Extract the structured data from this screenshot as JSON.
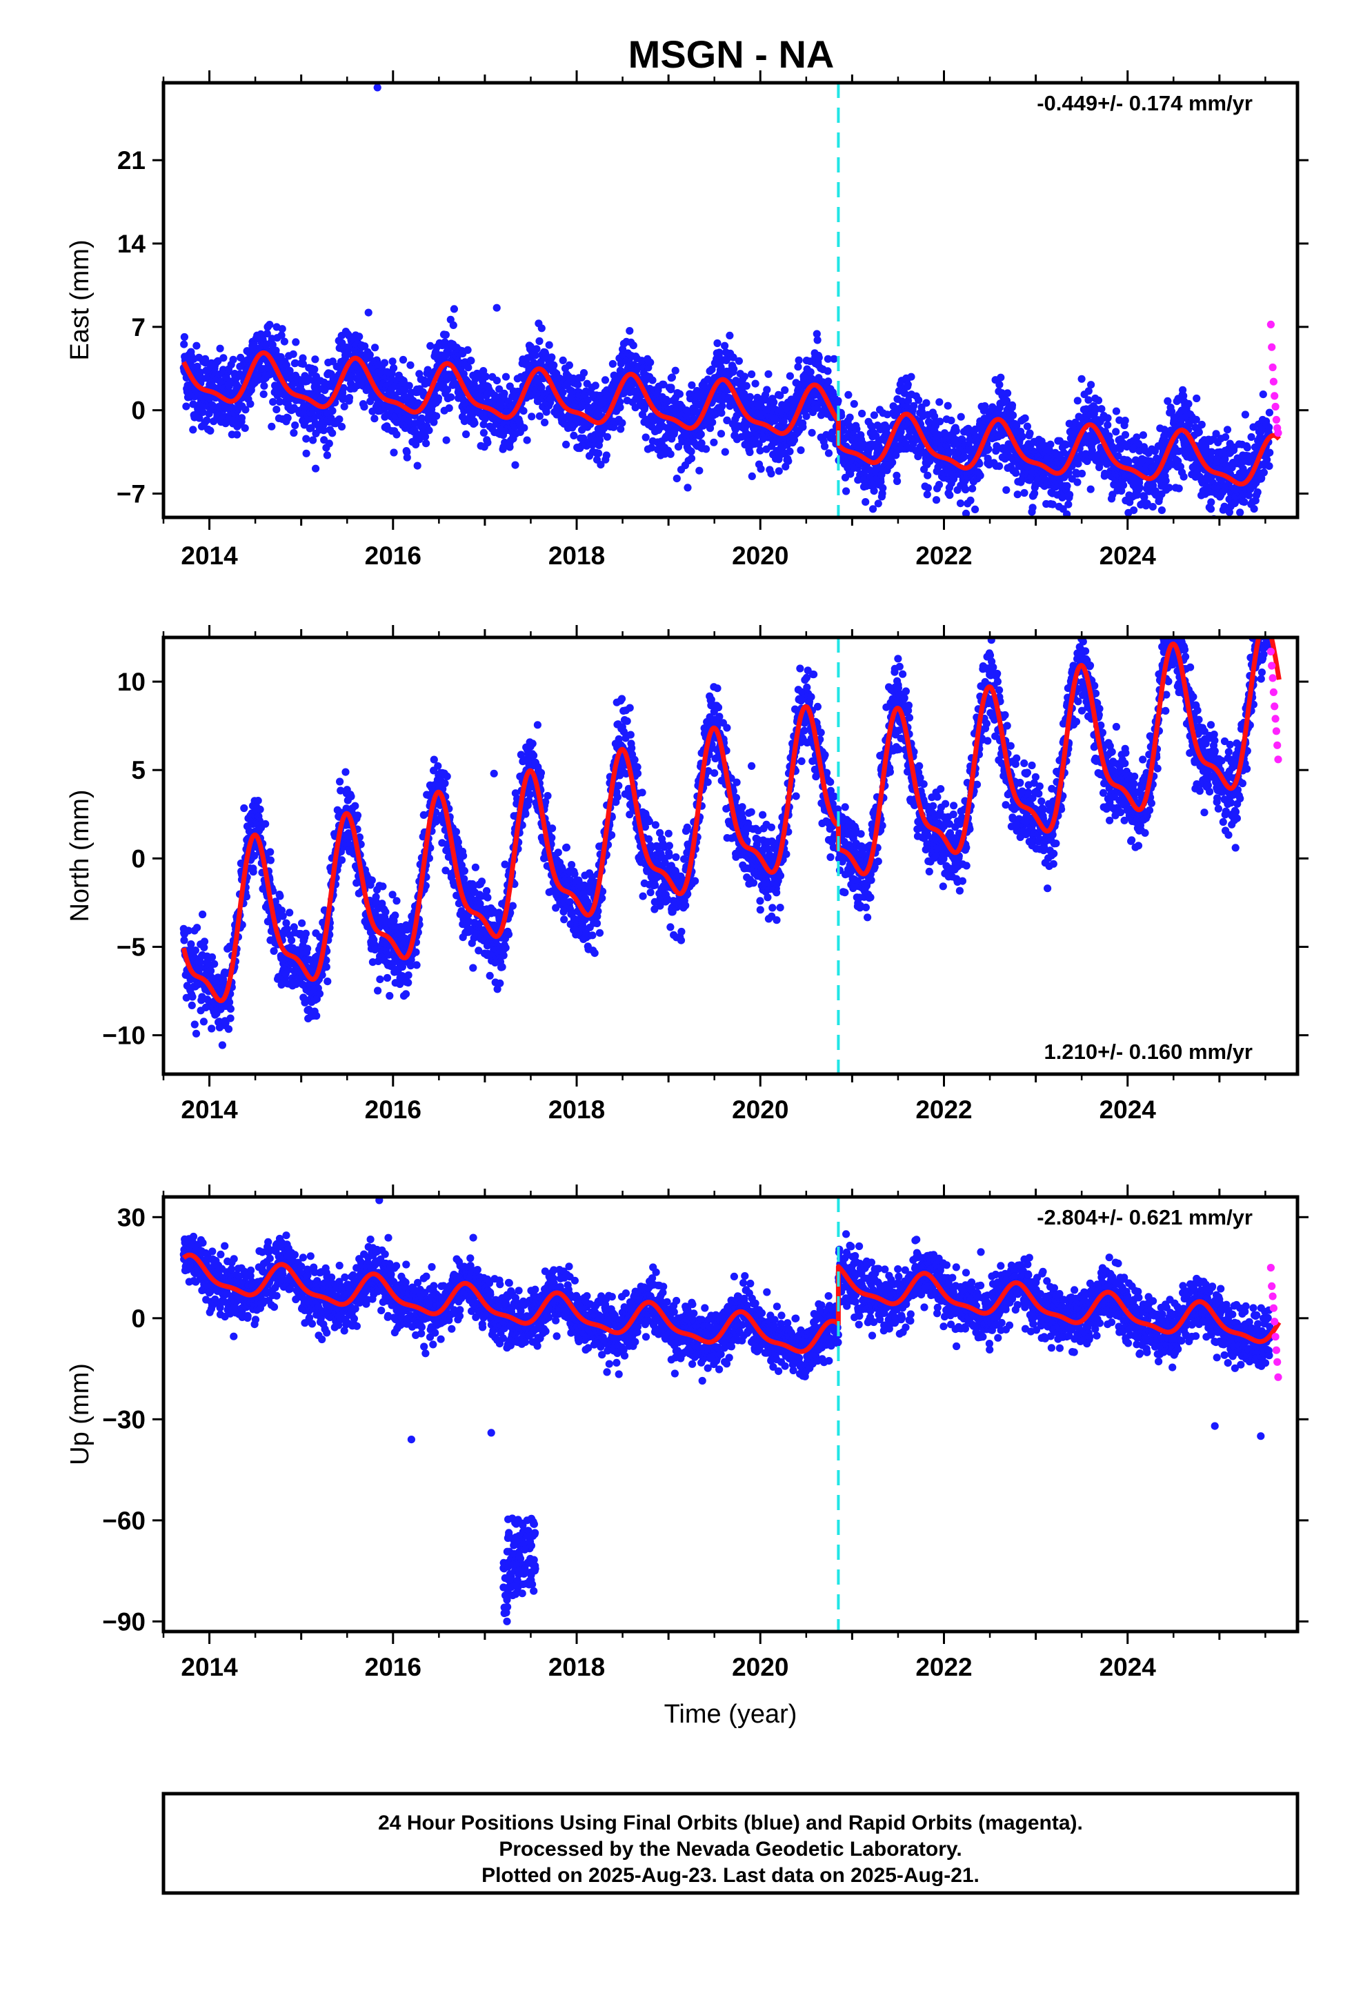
{
  "title": "MSGN - NA",
  "footer": {
    "lines": [
      "24 Hour Positions Using Final Orbits (blue) and Rapid Orbits (magenta).",
      "Processed by the Nevada Geodetic Laboratory.",
      "Plotted on 2025-Aug-23. Last data on 2025-Aug-21."
    ]
  },
  "colors": {
    "final_orbits": "#1a1aff",
    "rapid_orbits": "#ff22ff",
    "model": "#ff1111",
    "event_line": "#22e5e5",
    "frame": "#000000"
  },
  "chart_data": [
    {
      "type": "scatter",
      "component": "East",
      "ylabel": "East (mm)",
      "xlabel": "",
      "rate": "-0.449+/- 0.174 mm/yr",
      "rate_position": "top-right",
      "xlim": [
        2013.5,
        2025.85
      ],
      "ylim": [
        -9,
        27.5
      ],
      "yticks": [
        -7,
        0,
        7,
        14,
        21
      ],
      "xticks": [
        2014,
        2016,
        2018,
        2020,
        2022,
        2024
      ],
      "event_line_x": 2020.85,
      "series": [
        {
          "name": "Final Orbits (blue)",
          "x_start": 2013.72,
          "x_end": 2025.55,
          "offset": 2.7,
          "trend": -0.449,
          "amplitude": 1.9,
          "peak_phase": 0.62,
          "scatter": 1.6,
          "break_x": 2020.85,
          "break_offset": -2.0
        },
        {
          "name": "Rapid Orbits (magenta)",
          "x": [
            2025.56,
            2025.57,
            2025.58,
            2025.59,
            2025.6,
            2025.61,
            2025.62,
            2025.63,
            2025.64
          ],
          "y": [
            7.2,
            5.3,
            3.6,
            2.4,
            1.2,
            0.3,
            -0.8,
            -1.5,
            -1.9
          ]
        }
      ],
      "outliers": [
        {
          "x": 2015.83,
          "y": 27.1
        },
        {
          "x": 2017.13,
          "y": 8.6
        }
      ]
    },
    {
      "type": "scatter",
      "component": "North",
      "ylabel": "North (mm)",
      "xlabel": "",
      "rate": "1.210+/- 0.160 mm/yr",
      "rate_position": "bottom-right",
      "xlim": [
        2013.5,
        2025.85
      ],
      "ylim": [
        -12.2,
        12.5
      ],
      "yticks": [
        -10,
        -5,
        0,
        5,
        10
      ],
      "xticks": [
        2014,
        2016,
        2018,
        2020,
        2022,
        2024
      ],
      "event_line_x": 2020.85,
      "series": [
        {
          "name": "Final Orbits (blue)",
          "x_start": 2013.72,
          "x_end": 2025.55,
          "offset": -4.9,
          "trend": 1.21,
          "amplitude": 4.0,
          "peak_phase": 0.52,
          "scatter": 1.1,
          "break_x": 2020.85,
          "break_offset": -1.3
        },
        {
          "name": "Rapid Orbits (magenta)",
          "x": [
            2025.56,
            2025.57,
            2025.58,
            2025.59,
            2025.6,
            2025.61,
            2025.62,
            2025.63,
            2025.64
          ],
          "y": [
            11.7,
            10.9,
            10.2,
            9.4,
            8.6,
            7.9,
            7.2,
            6.4,
            5.6
          ]
        }
      ],
      "outliers": [
        {
          "x": 2017.1,
          "y": 4.8
        },
        {
          "x": 2021.5,
          "y": 11.3
        }
      ]
    },
    {
      "type": "scatter",
      "component": "Up",
      "ylabel": "Up (mm)",
      "xlabel": "Time (year)",
      "rate": "-2.804+/- 0.621 mm/yr",
      "rate_position": "top-right",
      "xlim": [
        2013.5,
        2025.85
      ],
      "ylim": [
        -93,
        36
      ],
      "yticks": [
        -90,
        -60,
        -30,
        0,
        30
      ],
      "xticks": [
        2014,
        2016,
        2018,
        2020,
        2022,
        2024
      ],
      "event_line_x": 2020.85,
      "series": [
        {
          "name": "Final Orbits (blue)",
          "x_start": 2013.72,
          "x_end": 2025.55,
          "offset": 13.0,
          "trend": -2.804,
          "amplitude": 4.5,
          "peak_phase": 0.82,
          "scatter": 4.2,
          "break_x": 2020.85,
          "break_offset": 17.0
        },
        {
          "name": "Rapid Orbits (magenta)",
          "x": [
            2025.56,
            2025.57,
            2025.58,
            2025.59,
            2025.6,
            2025.61,
            2025.62,
            2025.63,
            2025.64
          ],
          "y": [
            15.0,
            9.5,
            6.5,
            3.0,
            -1.0,
            -5.5,
            -9.5,
            -13.0,
            -17.5
          ]
        }
      ],
      "outlier_cluster": {
        "x_start": 2017.2,
        "x_end": 2017.55,
        "y_min": -90,
        "y_max": -59
      },
      "outliers": [
        {
          "x": 2016.2,
          "y": -36
        },
        {
          "x": 2017.07,
          "y": -34
        },
        {
          "x": 2024.95,
          "y": -32
        },
        {
          "x": 2025.45,
          "y": -35
        },
        {
          "x": 2015.85,
          "y": 35
        }
      ]
    }
  ]
}
